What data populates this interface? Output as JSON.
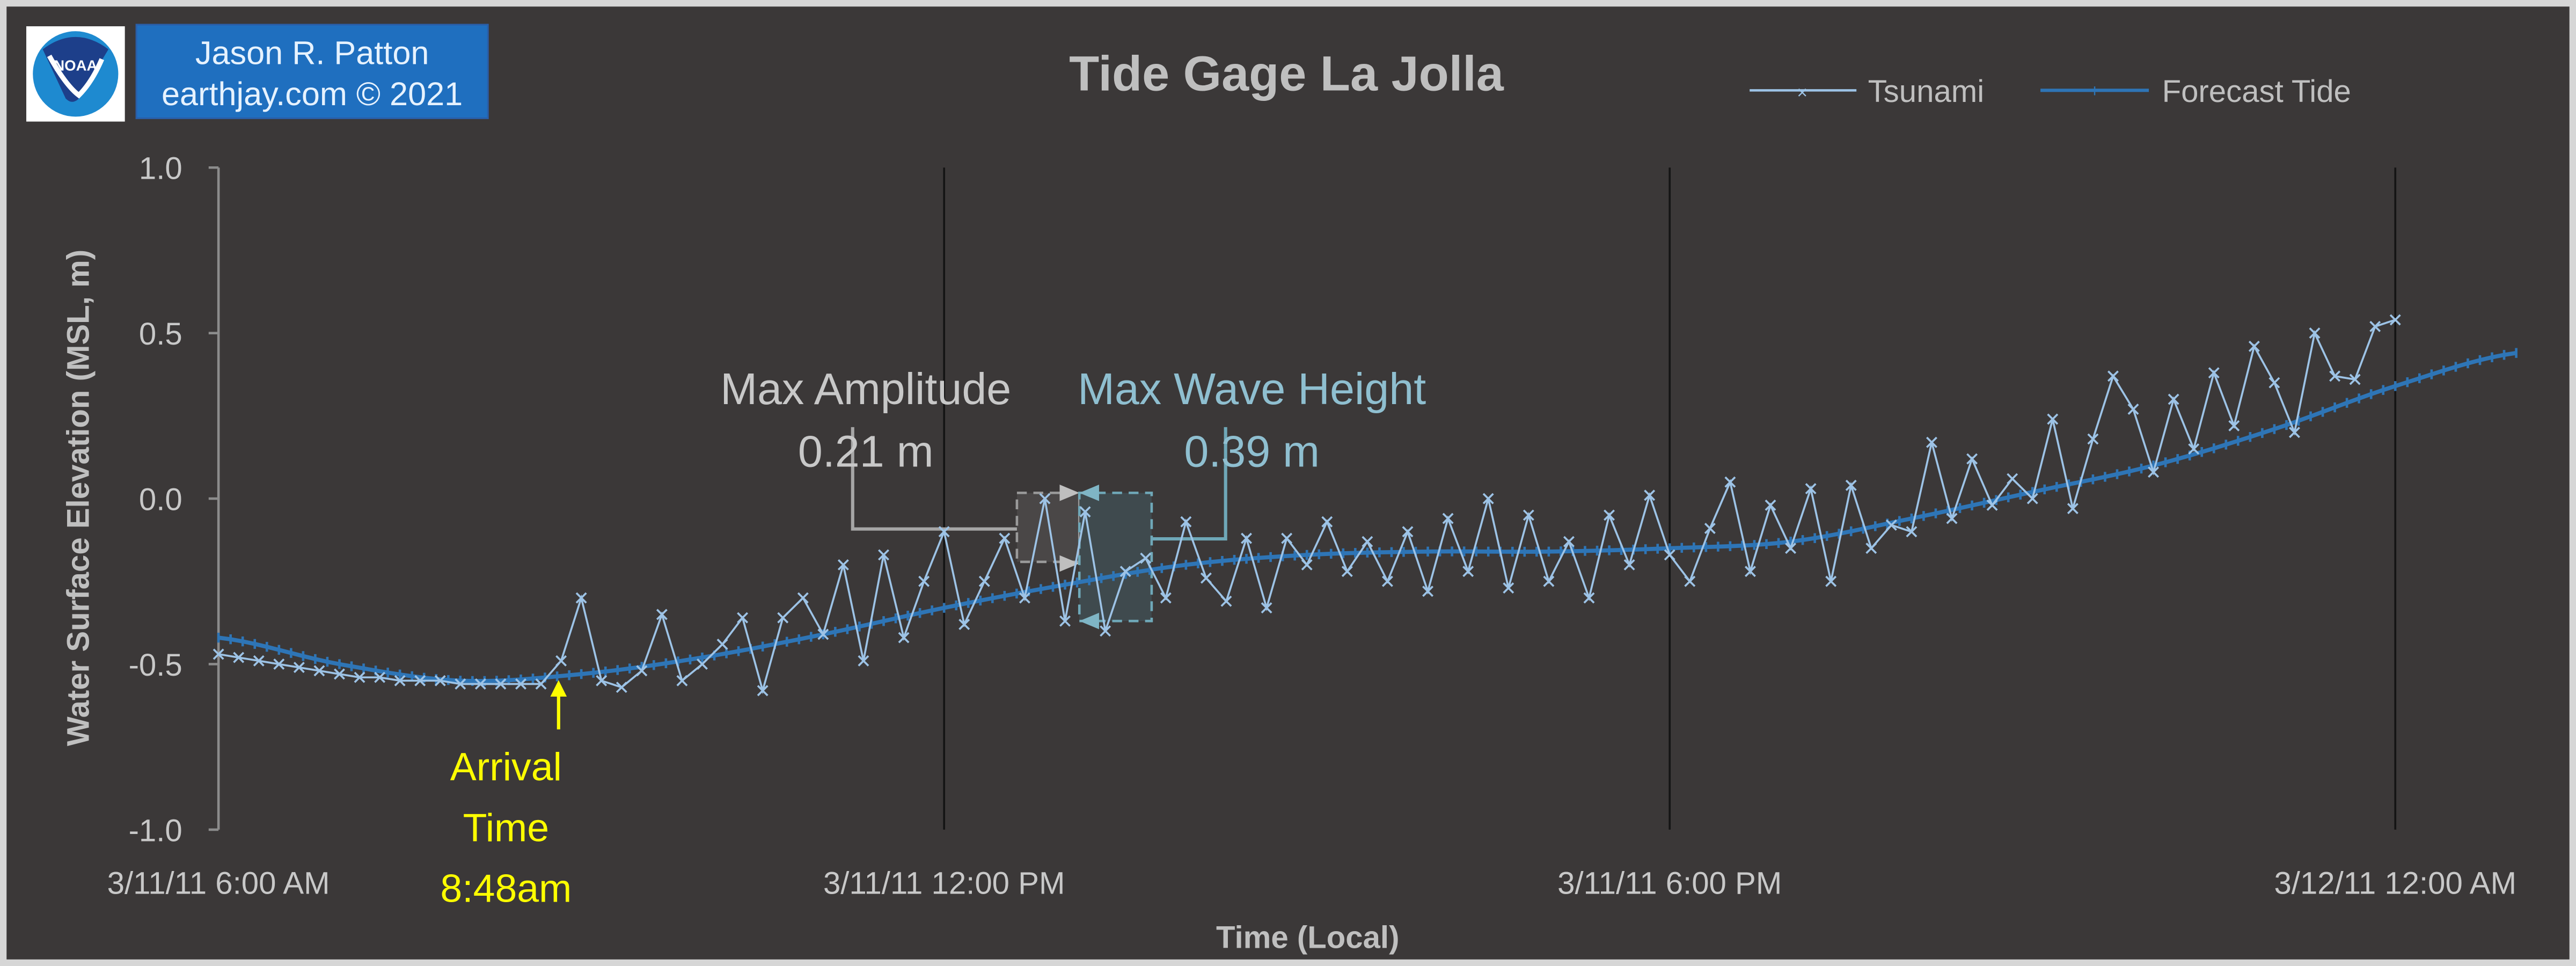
{
  "colors": {
    "background": "#3b3838",
    "tsunami": "#9dc3e6",
    "forecast": "#2e75b6",
    "arrival": "#ffff00",
    "amplitude": "#bfbfbf",
    "wave_height": "#8fbfd0",
    "credit_box": "#1f6fbf"
  },
  "logo": {
    "text": "NOAA",
    "ring_text": "NATIONAL OCEANIC AND ATMOSPHERIC ADMINISTRATION · U.S. DEPARTMENT OF COMMERCE"
  },
  "credit": {
    "line1": "Jason R. Patton",
    "line2": "earthjay.com © 2021"
  },
  "annotations": {
    "max_amplitude_label": "Max Amplitude",
    "max_amplitude_value": "0.21 m",
    "max_wave_height_label": "Max Wave Height",
    "max_wave_height_value": "0.39 m",
    "arrival_line1": "Arrival",
    "arrival_line2": "Time",
    "arrival_line3": "8:48am"
  },
  "chart_data": {
    "type": "line",
    "title": "Tide Gage La Jolla",
    "xlabel": "Time (Local)",
    "ylabel": "Water Surface Elevation (MSL, m)",
    "ylim": [
      -1.0,
      1.0
    ],
    "yticks": [
      "1.0",
      "0.5",
      "0.0",
      "-0.5",
      "-1.0"
    ],
    "ytick_values": [
      1.0,
      0.5,
      0.0,
      -0.5,
      -1.0
    ],
    "xlim_hours": [
      6,
      24
    ],
    "xticks": [
      "3/11/11 6:00 AM",
      "3/11/11 12:00 PM",
      "3/11/11 6:00 PM",
      "3/12/11 12:00 AM"
    ],
    "xtick_hours": [
      6,
      12,
      18,
      24
    ],
    "legend": {
      "placement": "top-right",
      "entries": [
        "Tsunami",
        "Forecast Tide"
      ]
    },
    "arrival_hour": 8.8,
    "series": [
      {
        "name": "Forecast Tide",
        "start_hour": 6,
        "step_minutes": 60,
        "values": [
          -0.42,
          -0.5,
          -0.55,
          -0.53,
          -0.48,
          -0.41,
          -0.33,
          -0.26,
          -0.2,
          -0.17,
          -0.16,
          -0.16,
          -0.15,
          -0.13,
          -0.06,
          0.02,
          0.1,
          0.21,
          0.34,
          0.44
        ]
      },
      {
        "name": "Tsunami",
        "start_hour": 6,
        "step_minutes": 10,
        "values": [
          -0.47,
          -0.48,
          -0.49,
          -0.5,
          -0.51,
          -0.52,
          -0.53,
          -0.54,
          -0.54,
          -0.55,
          -0.55,
          -0.55,
          -0.56,
          -0.56,
          -0.56,
          -0.56,
          -0.56,
          -0.49,
          -0.3,
          -0.55,
          -0.57,
          -0.52,
          -0.35,
          -0.55,
          -0.5,
          -0.44,
          -0.36,
          -0.58,
          -0.36,
          -0.3,
          -0.41,
          -0.2,
          -0.49,
          -0.17,
          -0.42,
          -0.25,
          -0.1,
          -0.38,
          -0.25,
          -0.12,
          -0.3,
          0.0,
          -0.37,
          -0.04,
          -0.4,
          -0.22,
          -0.18,
          -0.3,
          -0.07,
          -0.24,
          -0.31,
          -0.12,
          -0.33,
          -0.12,
          -0.2,
          -0.07,
          -0.22,
          -0.13,
          -0.25,
          -0.1,
          -0.28,
          -0.06,
          -0.22,
          0.0,
          -0.27,
          -0.05,
          -0.25,
          -0.13,
          -0.3,
          -0.05,
          -0.2,
          0.01,
          -0.17,
          -0.25,
          -0.09,
          0.05,
          -0.22,
          -0.02,
          -0.15,
          0.03,
          -0.25,
          0.04,
          -0.15,
          -0.08,
          -0.1,
          0.17,
          -0.06,
          0.12,
          -0.02,
          0.06,
          0.0,
          0.24,
          -0.03,
          0.18,
          0.37,
          0.27,
          0.08,
          0.3,
          0.15,
          0.38,
          0.22,
          0.46,
          0.35,
          0.2,
          0.5,
          0.37,
          0.36,
          0.52,
          0.54
        ]
      }
    ]
  }
}
